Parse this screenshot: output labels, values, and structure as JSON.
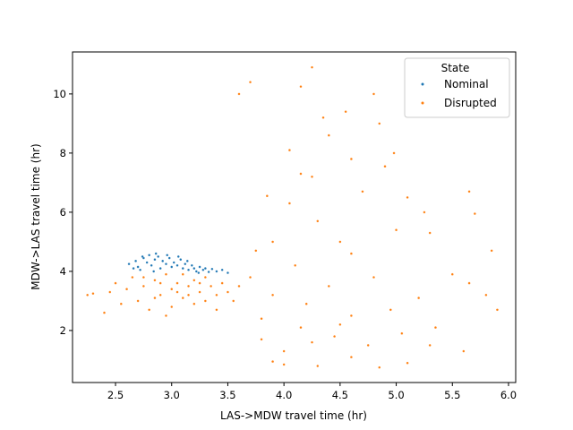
{
  "chart_data": {
    "type": "scatter",
    "x_label": "LAS->MDW travel time (hr)",
    "y_label": "MDW->LAS travel time (hr)",
    "legend_title": "State",
    "legend": "upper right",
    "xlim": [
      2.117,
      6.064
    ],
    "ylim": [
      0.24,
      11.42
    ],
    "xticks": [
      2.5,
      {
        "value": 3,
        "label": "3.0"
      },
      3.5,
      {
        "value": 4,
        "label": "4.0"
      },
      4.5,
      {
        "value": 5,
        "label": "5.0"
      },
      5.5,
      {
        "value": 6,
        "label": "6.0"
      }
    ],
    "yticks": [
      2,
      4,
      6,
      8,
      10
    ],
    "series": [
      {
        "name": "Nominal",
        "color": "#1f77b4",
        "x": [
          2.62,
          2.68,
          2.7,
          2.75,
          2.78,
          2.8,
          2.82,
          2.85,
          2.88,
          2.9,
          2.92,
          2.95,
          2.98,
          3.0,
          3.02,
          3.05,
          3.08,
          3.1,
          3.12,
          3.15,
          3.18,
          3.2,
          3.22,
          3.25,
          3.28,
          3.3,
          3.33,
          3.36,
          3.4,
          3.45,
          3.5,
          2.72,
          2.86,
          2.96,
          3.06,
          2.66,
          3.14,
          3.24,
          2.84,
          2.74
        ],
        "values": [
          4.25,
          4.35,
          4.15,
          4.45,
          4.3,
          4.55,
          4.2,
          4.4,
          4.5,
          4.1,
          4.35,
          4.25,
          4.45,
          4.15,
          4.3,
          4.2,
          4.4,
          4.1,
          4.25,
          4.05,
          4.2,
          4.1,
          4.0,
          4.15,
          4.05,
          4.1,
          3.98,
          4.08,
          4.0,
          4.05,
          3.95,
          4.05,
          4.6,
          4.55,
          4.5,
          4.1,
          4.35,
          3.95,
          4.0,
          4.5
        ]
      },
      {
        "name": "Disrupted",
        "color": "#ff7f0e",
        "x": [
          2.45,
          2.5,
          2.55,
          2.6,
          2.65,
          2.7,
          2.75,
          2.8,
          2.85,
          2.9,
          2.95,
          3.0,
          3.0,
          3.05,
          3.1,
          3.1,
          3.15,
          3.2,
          3.2,
          3.25,
          3.3,
          3.3,
          3.35,
          3.4,
          3.45,
          3.5,
          3.55,
          3.6,
          2.9,
          3.05,
          2.85,
          3.15,
          2.75,
          3.25,
          2.4,
          2.3,
          2.25,
          2.95,
          3.4,
          3.7,
          3.6,
          3.7,
          4.25,
          4.15,
          4.8,
          4.55,
          4.35,
          4.85,
          4.4,
          4.05,
          4.98,
          4.6,
          4.9,
          4.15,
          4.25,
          3.85,
          4.05,
          4.7,
          5.1,
          5.65,
          5.25,
          5.7,
          5.0,
          4.3,
          3.9,
          4.5,
          5.3,
          3.75,
          4.6,
          5.5,
          5.65,
          5.85,
          5.8,
          4.1,
          4.4,
          4.8,
          5.2,
          3.9,
          4.2,
          4.6,
          4.95,
          5.35,
          5.9,
          3.8,
          4.15,
          4.45,
          4.75,
          5.05,
          5.6,
          3.8,
          4.0,
          4.3,
          4.6,
          4.85,
          5.1,
          4.0,
          3.9,
          4.5,
          4.25,
          5.3
        ],
        "values": [
          3.3,
          3.6,
          2.9,
          3.4,
          3.8,
          3.0,
          3.5,
          2.7,
          3.7,
          3.2,
          3.9,
          3.4,
          2.8,
          3.6,
          3.1,
          3.9,
          3.5,
          2.9,
          3.7,
          3.3,
          3.8,
          3.0,
          3.5,
          3.2,
          3.6,
          3.3,
          3.0,
          3.5,
          3.6,
          3.3,
          3.1,
          3.2,
          3.8,
          3.6,
          2.6,
          3.25,
          3.2,
          2.5,
          2.7,
          3.8,
          10.0,
          10.4,
          10.9,
          10.25,
          10.0,
          9.4,
          9.2,
          9.0,
          8.6,
          8.1,
          8.0,
          7.8,
          7.55,
          7.3,
          7.2,
          6.55,
          6.3,
          6.7,
          6.5,
          6.7,
          6.0,
          5.95,
          5.4,
          5.7,
          5.0,
          5.0,
          5.3,
          4.7,
          4.6,
          3.9,
          3.6,
          4.7,
          3.2,
          4.2,
          3.5,
          3.8,
          3.1,
          3.2,
          2.9,
          2.5,
          2.7,
          2.1,
          2.7,
          2.4,
          2.1,
          1.8,
          1.5,
          1.9,
          1.3,
          1.7,
          1.3,
          0.8,
          1.1,
          0.75,
          0.9,
          0.85,
          0.95,
          2.2,
          1.6,
          1.5
        ]
      }
    ]
  }
}
